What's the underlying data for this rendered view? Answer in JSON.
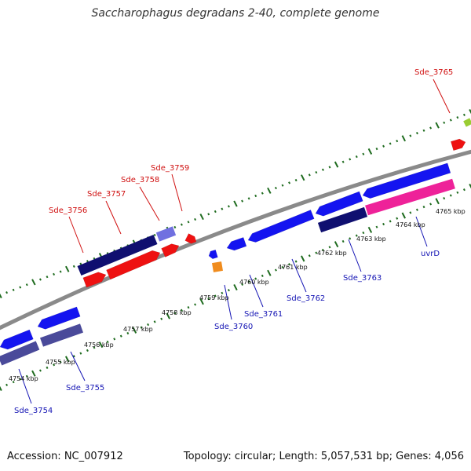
{
  "title": "Saccharophagus degradans 2-40, complete genome",
  "footer": {
    "accession": "Accession: NC_007912",
    "summary": "Topology: circular; Length: 5,057,531 bp; Genes: 4,056"
  },
  "colors": {
    "backbone": "#8a8a8a",
    "tick": "#1e6b1e",
    "forward_label": "#d01010",
    "reverse_label": "#1414b4"
  },
  "tick_labels": [
    "4754 kbp",
    "4755 kbp",
    "4756 kbp",
    "4757 kbp",
    "4758 kbp",
    "4759 kbp",
    "4760 kbp",
    "4761 kbp",
    "4762 kbp",
    "4763 kbp",
    "4764 kbp",
    "4765 kbp"
  ],
  "forward_labels": [
    "Sde_3756",
    "Sde_3757",
    "Sde_3758",
    "Sde_3759",
    "Sde_3765"
  ],
  "reverse_labels": [
    "Sde_3754",
    "Sde_3755",
    "Sde_3760",
    "Sde_3761",
    "Sde_3762",
    "Sde_3763",
    "uvrD"
  ]
}
